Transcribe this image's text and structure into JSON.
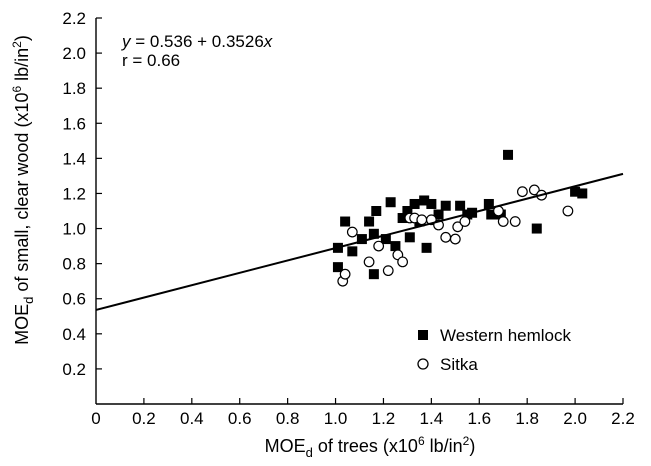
{
  "chart_data": {
    "type": "scatter",
    "xlabel": "MOE",
    "xlabel_sub": "d",
    "xlabel_rest": " of trees (x10",
    "xlabel_sup": "6",
    "xlabel_end": " lb/in",
    "xlabel_sup2": "2",
    "xlabel_close": ")",
    "ylabel": "MOE",
    "ylabel_sub": "d",
    "ylabel_rest": " of small, clear wood (x10",
    "ylabel_sup": "6",
    "ylabel_end": " lb/in",
    "ylabel_sup2": "2",
    "ylabel_close": ")",
    "xlim": [
      0,
      2.2
    ],
    "ylim": [
      0,
      2.2
    ],
    "x_ticks": [
      "0",
      "0.2",
      "0.4",
      "0.6",
      "0.8",
      "1.0",
      "1.2",
      "1.4",
      "1.6",
      "1.8",
      "2.0",
      "2.2"
    ],
    "y_ticks": [
      "0.2",
      "0.4",
      "0.6",
      "0.8",
      "1.0",
      "1.2",
      "1.4",
      "1.6",
      "1.8",
      "2.0",
      "2.2"
    ],
    "annotation_eq_y": "y",
    "annotation_eq_rest": " = 0.536 + 0.3526",
    "annotation_eq_x": "x",
    "annotation_r": "r = 0.66",
    "regression": {
      "intercept": 0.536,
      "slope": 0.3526,
      "x_range": [
        0,
        2.2
      ]
    },
    "series": [
      {
        "name": "Western hemlock",
        "marker": "filled-square",
        "color": "#000000",
        "points": [
          [
            1.01,
            0.78
          ],
          [
            1.01,
            0.89
          ],
          [
            1.04,
            1.04
          ],
          [
            1.07,
            0.87
          ],
          [
            1.11,
            0.94
          ],
          [
            1.14,
            1.04
          ],
          [
            1.16,
            0.97
          ],
          [
            1.16,
            0.74
          ],
          [
            1.17,
            1.1
          ],
          [
            1.21,
            0.94
          ],
          [
            1.23,
            1.15
          ],
          [
            1.25,
            0.9
          ],
          [
            1.28,
            1.06
          ],
          [
            1.3,
            1.1
          ],
          [
            1.31,
            0.95
          ],
          [
            1.33,
            1.14
          ],
          [
            1.35,
            1.04
          ],
          [
            1.37,
            1.16
          ],
          [
            1.38,
            0.89
          ],
          [
            1.4,
            1.14
          ],
          [
            1.43,
            1.08
          ],
          [
            1.46,
            1.13
          ],
          [
            1.52,
            1.13
          ],
          [
            1.55,
            1.08
          ],
          [
            1.57,
            1.09
          ],
          [
            1.64,
            1.14
          ],
          [
            1.65,
            1.08
          ],
          [
            1.69,
            1.08
          ],
          [
            1.72,
            1.42
          ],
          [
            1.84,
            1.0
          ],
          [
            2.0,
            1.21
          ],
          [
            2.03,
            1.2
          ]
        ]
      },
      {
        "name": "Sitka",
        "marker": "open-circle",
        "color": "#000000",
        "points": [
          [
            1.03,
            0.7
          ],
          [
            1.04,
            0.74
          ],
          [
            1.07,
            0.98
          ],
          [
            1.14,
            0.81
          ],
          [
            1.18,
            0.9
          ],
          [
            1.22,
            0.76
          ],
          [
            1.26,
            0.85
          ],
          [
            1.28,
            0.81
          ],
          [
            1.31,
            1.06
          ],
          [
            1.33,
            1.06
          ],
          [
            1.36,
            1.05
          ],
          [
            1.4,
            1.05
          ],
          [
            1.43,
            1.02
          ],
          [
            1.46,
            0.95
          ],
          [
            1.5,
            0.94
          ],
          [
            1.51,
            1.01
          ],
          [
            1.54,
            1.04
          ],
          [
            1.68,
            1.1
          ],
          [
            1.7,
            1.04
          ],
          [
            1.75,
            1.04
          ],
          [
            1.78,
            1.21
          ],
          [
            1.83,
            1.22
          ],
          [
            1.86,
            1.19
          ],
          [
            1.97,
            1.1
          ]
        ]
      }
    ]
  }
}
